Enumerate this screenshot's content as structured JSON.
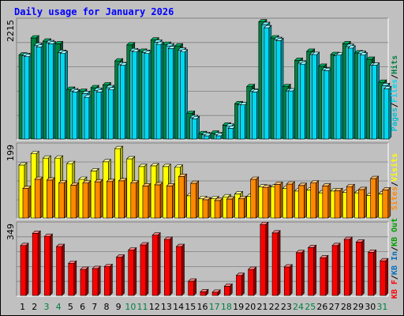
{
  "title": "Daily usage for January 2026",
  "colors": {
    "pages": "#00c0d0",
    "files": "#00d8f0",
    "hits": "#008040",
    "visits": "#ffff00",
    "sites": "#ff8800",
    "kbin": "#0070c0",
    "kbout": "#00a000",
    "kbf": "#ff0000",
    "title": "#0000ff",
    "weekday": "#000000",
    "weekend": "#008040"
  },
  "chart_data": [
    {
      "type": "bar",
      "panel": "hits-files-pages",
      "ymax_label": "2215",
      "ylim": [
        0,
        2215
      ],
      "legend": [
        "Pages",
        "Files",
        "Hits"
      ],
      "legend_position": "right",
      "categories": [
        "1",
        "2",
        "3",
        "4",
        "5",
        "6",
        "7",
        "8",
        "9",
        "10",
        "11",
        "12",
        "13",
        "14",
        "15",
        "16",
        "17",
        "18",
        "19",
        "20",
        "21",
        "22",
        "23",
        "24",
        "25",
        "26",
        "27",
        "28",
        "29",
        "30",
        "31"
      ],
      "series": [
        {
          "name": "Hits",
          "values": [
            1570,
            1890,
            1830,
            1780,
            930,
            890,
            960,
            1010,
            1460,
            1760,
            1640,
            1850,
            1770,
            1740,
            480,
            100,
            110,
            260,
            660,
            980,
            2190,
            1890,
            980,
            1470,
            1640,
            1360,
            1580,
            1780,
            1610,
            1490,
            1060
          ]
        },
        {
          "name": "Files",
          "values": [
            1560,
            1750,
            1800,
            1620,
            900,
            850,
            910,
            960,
            1390,
            1650,
            1620,
            1810,
            1740,
            1660,
            400,
            80,
            80,
            240,
            640,
            890,
            2140,
            1860,
            900,
            1420,
            1580,
            1290,
            1560,
            1730,
            1600,
            1380,
            1000
          ]
        },
        {
          "name": "Pages",
          "values": [
            1540,
            1720,
            1780,
            1600,
            880,
            780,
            880,
            920,
            1380,
            1630,
            1600,
            1770,
            1690,
            1630,
            380,
            60,
            60,
            200,
            640,
            880,
            2080,
            1840,
            900,
            1400,
            1580,
            1280,
            1570,
            1700,
            1570,
            1380,
            940
          ]
        }
      ]
    },
    {
      "type": "bar",
      "panel": "visits-sites",
      "ymax_label": "199",
      "ylim": [
        0,
        199
      ],
      "legend": [
        "Visits",
        "Sites"
      ],
      "legend_position": "right",
      "categories": [
        "1",
        "2",
        "3",
        "4",
        "5",
        "6",
        "7",
        "8",
        "9",
        "10",
        "11",
        "12",
        "13",
        "14",
        "15",
        "16",
        "17",
        "18",
        "19",
        "20",
        "21",
        "22",
        "23",
        "24",
        "25",
        "26",
        "27",
        "28",
        "29",
        "30",
        "31"
      ],
      "series": [
        {
          "name": "Visits",
          "values": [
            145,
            176,
            164,
            164,
            149,
            106,
            129,
            154,
            190,
            162,
            141,
            143,
            141,
            139,
            61,
            53,
            53,
            58,
            66,
            59,
            85,
            85,
            81,
            74,
            77,
            69,
            74,
            70,
            69,
            62,
            66
          ]
        },
        {
          "name": "Sites",
          "values": [
            81,
            106,
            104,
            96,
            90,
            96,
            99,
            100,
            102,
            96,
            88,
            91,
            88,
            114,
            95,
            50,
            48,
            52,
            53,
            106,
            84,
            92,
            93,
            89,
            96,
            88,
            75,
            86,
            78,
            108,
            77
          ]
        }
      ]
    },
    {
      "type": "bar",
      "panel": "kbytes",
      "ymax_label": "349",
      "ylim": [
        0,
        349
      ],
      "legend": [
        "KB F",
        "KB In",
        "KB Out"
      ],
      "legend_position": "right",
      "categories": [
        "1",
        "2",
        "3",
        "4",
        "5",
        "6",
        "7",
        "8",
        "9",
        "10",
        "11",
        "12",
        "13",
        "14",
        "15",
        "16",
        "17",
        "18",
        "19",
        "20",
        "21",
        "22",
        "23",
        "24",
        "25",
        "26",
        "27",
        "28",
        "29",
        "30",
        "31"
      ],
      "series": [
        {
          "name": "KB F",
          "values": [
            245,
            305,
            290,
            240,
            158,
            128,
            132,
            142,
            188,
            223,
            248,
            296,
            275,
            240,
            70,
            18,
            16,
            45,
            98,
            128,
            348,
            307,
            140,
            210,
            235,
            185,
            245,
            275,
            262,
            212,
            170
          ]
        }
      ]
    }
  ],
  "axis": {
    "days": [
      "1",
      "2",
      "3",
      "4",
      "5",
      "6",
      "7",
      "8",
      "9",
      "10",
      "11",
      "12",
      "13",
      "14",
      "15",
      "16",
      "17",
      "18",
      "19",
      "20",
      "21",
      "22",
      "23",
      "24",
      "25",
      "26",
      "27",
      "28",
      "29",
      "30",
      "31"
    ],
    "weekend_days": [
      "3",
      "4",
      "10",
      "11",
      "17",
      "18",
      "24",
      "25",
      "31"
    ]
  },
  "legends": {
    "top": [
      {
        "text": "Pages",
        "color_key": "pages"
      },
      {
        "text": "/",
        "color_key": "weekday"
      },
      {
        "text": "Files",
        "color_key": "files"
      },
      {
        "text": "/",
        "color_key": "weekday"
      },
      {
        "text": "Hits",
        "color_key": "hits"
      }
    ],
    "middle": [
      {
        "text": "Sites",
        "color_key": "sites"
      },
      {
        "text": "/",
        "color_key": "weekday"
      },
      {
        "text": "Visits",
        "color_key": "visits"
      }
    ],
    "bottom": [
      {
        "text": "KB F",
        "color_key": "kbf"
      },
      {
        "text": "/",
        "color_key": "weekday"
      },
      {
        "text": "KB In",
        "color_key": "kbin"
      },
      {
        "text": "/",
        "color_key": "weekday"
      },
      {
        "text": "KB Out",
        "color_key": "kbout"
      }
    ]
  }
}
